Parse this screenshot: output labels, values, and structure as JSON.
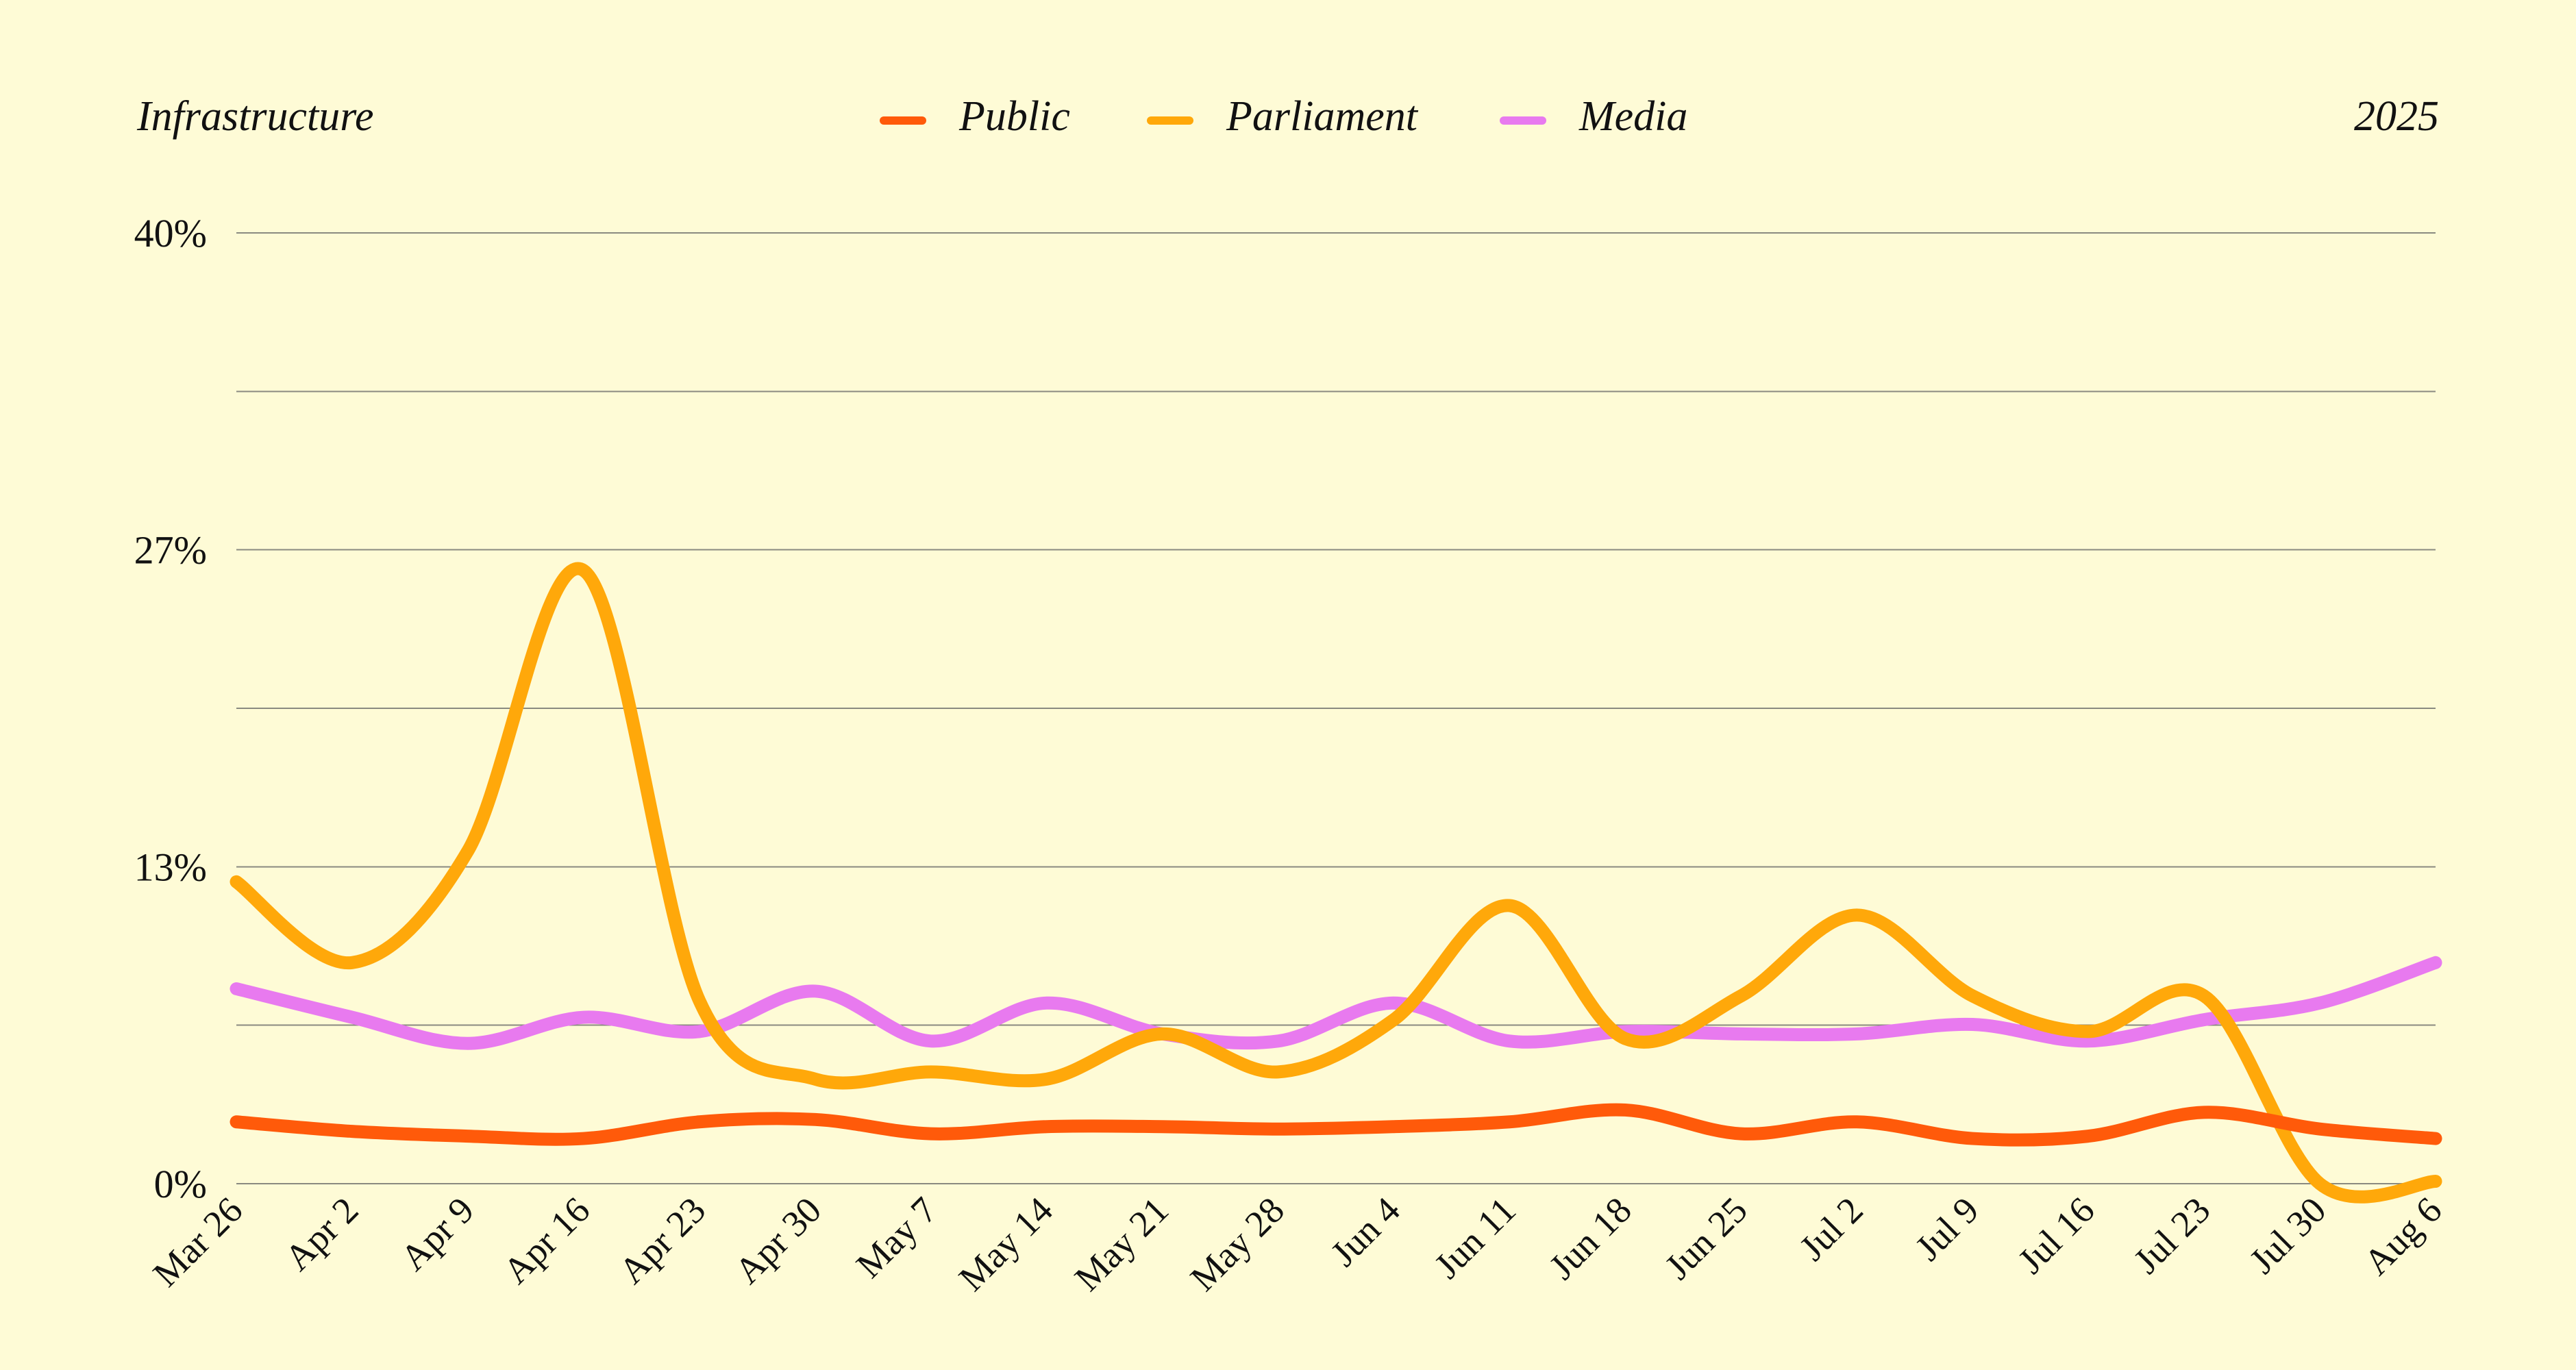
{
  "chart_data": {
    "type": "line",
    "title": "Infrastructure",
    "year_label": "2025",
    "ylim": [
      0,
      40
    ],
    "y_ticks": [
      {
        "value": 0,
        "label": "0%"
      },
      {
        "value": 13.33,
        "label": "13%"
      },
      {
        "value": 26.67,
        "label": "27%"
      },
      {
        "value": 40,
        "label": "40%"
      }
    ],
    "y_gridlines": [
      0,
      6.67,
      13.33,
      20,
      26.67,
      33.33,
      40
    ],
    "grid": true,
    "legend_placement": "top-center",
    "categories": [
      "Mar 26",
      "Apr 2",
      "Apr 9",
      "Apr 16",
      "Apr 23",
      "Apr 30",
      "May 7",
      "May 14",
      "May 21",
      "May 28",
      "Jun 4",
      "Jun 11",
      "Jun 18",
      "Jun 25",
      "Jul 2",
      "Jul 9",
      "Jul 16",
      "Jul 23",
      "Jul 30",
      "Aug 6"
    ],
    "series": [
      {
        "name": "Public",
        "color": "#ff5a0a",
        "values": [
          2.6,
          2.2,
          2.0,
          1.9,
          2.6,
          2.7,
          2.1,
          2.4,
          2.4,
          2.3,
          2.4,
          2.6,
          3.1,
          2.1,
          2.6,
          1.9,
          2.0,
          3.0,
          2.3,
          1.9
        ]
      },
      {
        "name": "Parliament",
        "color": "#ffa80a",
        "values": [
          12.7,
          9.3,
          14.0,
          25.8,
          7.7,
          4.4,
          4.7,
          4.4,
          6.3,
          4.7,
          6.9,
          11.7,
          6.1,
          7.9,
          11.3,
          7.9,
          6.4,
          7.9,
          0.0,
          0.1
        ]
      },
      {
        "name": "Media",
        "color": "#e87aef",
        "values": [
          8.2,
          7.0,
          5.9,
          7.0,
          6.4,
          8.1,
          6.0,
          7.6,
          6.3,
          6.0,
          7.6,
          6.0,
          6.4,
          6.3,
          6.3,
          6.7,
          6.0,
          6.9,
          7.6,
          9.3
        ]
      }
    ]
  }
}
